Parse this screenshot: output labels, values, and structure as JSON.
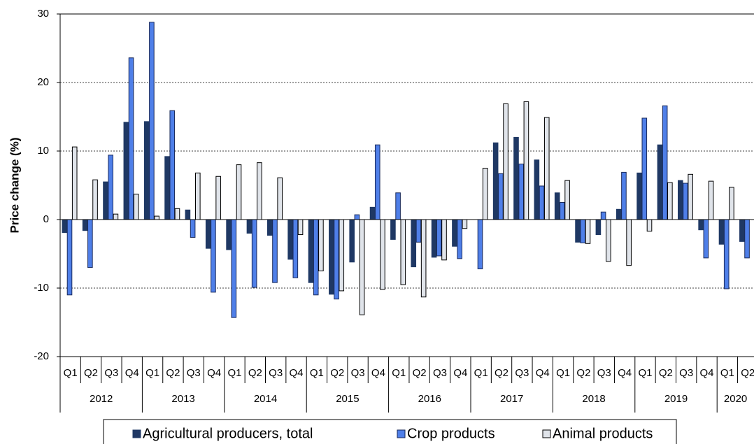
{
  "chart_data": {
    "type": "bar",
    "y_label": "Price change (%)",
    "categories": [
      {
        "year": "2012",
        "quarter": "Q1"
      },
      {
        "year": "2012",
        "quarter": "Q2"
      },
      {
        "year": "2012",
        "quarter": "Q3"
      },
      {
        "year": "2012",
        "quarter": "Q4"
      },
      {
        "year": "2013",
        "quarter": "Q1"
      },
      {
        "year": "2013",
        "quarter": "Q2"
      },
      {
        "year": "2013",
        "quarter": "Q3"
      },
      {
        "year": "2013",
        "quarter": "Q4"
      },
      {
        "year": "2014",
        "quarter": "Q1"
      },
      {
        "year": "2014",
        "quarter": "Q2"
      },
      {
        "year": "2014",
        "quarter": "Q3"
      },
      {
        "year": "2014",
        "quarter": "Q4"
      },
      {
        "year": "2015",
        "quarter": "Q1"
      },
      {
        "year": "2015",
        "quarter": "Q2"
      },
      {
        "year": "2015",
        "quarter": "Q3"
      },
      {
        "year": "2015",
        "quarter": "Q4"
      },
      {
        "year": "2016",
        "quarter": "Q1"
      },
      {
        "year": "2016",
        "quarter": "Q2"
      },
      {
        "year": "2016",
        "quarter": "Q3"
      },
      {
        "year": "2016",
        "quarter": "Q4"
      },
      {
        "year": "2017",
        "quarter": "Q1"
      },
      {
        "year": "2017",
        "quarter": "Q2"
      },
      {
        "year": "2017",
        "quarter": "Q3"
      },
      {
        "year": "2017",
        "quarter": "Q4"
      },
      {
        "year": "2018",
        "quarter": "Q1"
      },
      {
        "year": "2018",
        "quarter": "Q2"
      },
      {
        "year": "2018",
        "quarter": "Q3"
      },
      {
        "year": "2018",
        "quarter": "Q4"
      },
      {
        "year": "2019",
        "quarter": "Q1"
      },
      {
        "year": "2019",
        "quarter": "Q2"
      },
      {
        "year": "2019",
        "quarter": "Q3"
      },
      {
        "year": "2019",
        "quarter": "Q4"
      },
      {
        "year": "2020",
        "quarter": "Q1"
      },
      {
        "year": "2020",
        "quarter": "Q2"
      }
    ],
    "series": [
      {
        "name": "Agricultural producers, total",
        "color": "#1f3864",
        "stroke": "#1f3864",
        "values": [
          -1.9,
          -1.6,
          5.5,
          14.2,
          14.3,
          9.2,
          1.4,
          -4.2,
          -4.4,
          -2.0,
          -2.3,
          -5.8,
          -9.2,
          -10.9,
          -6.2,
          1.8,
          -2.9,
          -6.9,
          -5.5,
          -3.9,
          0,
          11.2,
          12.0,
          8.7,
          3.9,
          -3.3,
          -2.2,
          1.5,
          6.8,
          10.9,
          5.7,
          -1.5,
          -3.6,
          -3.2
        ]
      },
      {
        "name": "Crop products",
        "color": "#4f7fe8",
        "stroke": "#1a2a5a",
        "values": [
          -11.0,
          -7.0,
          9.4,
          23.6,
          28.8,
          15.9,
          -2.6,
          -10.6,
          -14.3,
          -9.9,
          -9.2,
          -8.5,
          -11.0,
          -11.6,
          0.7,
          10.9,
          3.9,
          -3.3,
          -5.3,
          -5.7,
          -7.2,
          6.7,
          8.1,
          4.9,
          2.5,
          -3.4,
          1.1,
          6.9,
          14.8,
          16.6,
          5.3,
          -5.6,
          -10.1,
          -5.6
        ]
      },
      {
        "name": "Animal products",
        "color": "#e0e4ea",
        "stroke": "#000000",
        "values": [
          10.6,
          5.8,
          0.8,
          3.7,
          0.5,
          1.6,
          6.8,
          6.3,
          8.0,
          8.3,
          6.1,
          -2.2,
          -7.5,
          -10.4,
          -13.9,
          -10.2,
          -9.5,
          -11.3,
          -5.9,
          -1.3,
          7.5,
          16.9,
          17.2,
          14.9,
          5.7,
          -3.5,
          -6.1,
          -6.7,
          -1.7,
          5.4,
          6.6,
          5.6,
          4.7,
          null
        ]
      }
    ],
    "ylim": [
      -20,
      30
    ],
    "yticks": [
      -20,
      -10,
      0,
      10,
      20,
      30
    ],
    "grid": true
  }
}
